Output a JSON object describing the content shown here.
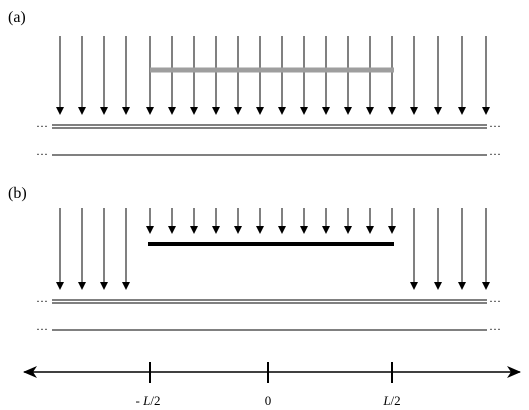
{
  "panels": [
    {
      "label": "(a)",
      "plate": {
        "color": "#9e9e9e",
        "description": "gray bar"
      },
      "outer_arrows_left": 4,
      "inner_arrows": 12,
      "outer_arrows_right": 4
    },
    {
      "label": "(b)",
      "plate": {
        "color": "#000000",
        "description": "black bar"
      },
      "outer_arrows_left": 4,
      "inner_arrows": 12,
      "outer_arrows_right": 4
    }
  ],
  "continuation": "···",
  "axis": {
    "ticks": [
      {
        "prefix": "- ",
        "symbol": "L",
        "suffix": "/2"
      },
      {
        "prefix": "",
        "symbol": "0",
        "suffix": ""
      },
      {
        "prefix": "",
        "symbol": "L",
        "suffix": "/2"
      }
    ]
  }
}
